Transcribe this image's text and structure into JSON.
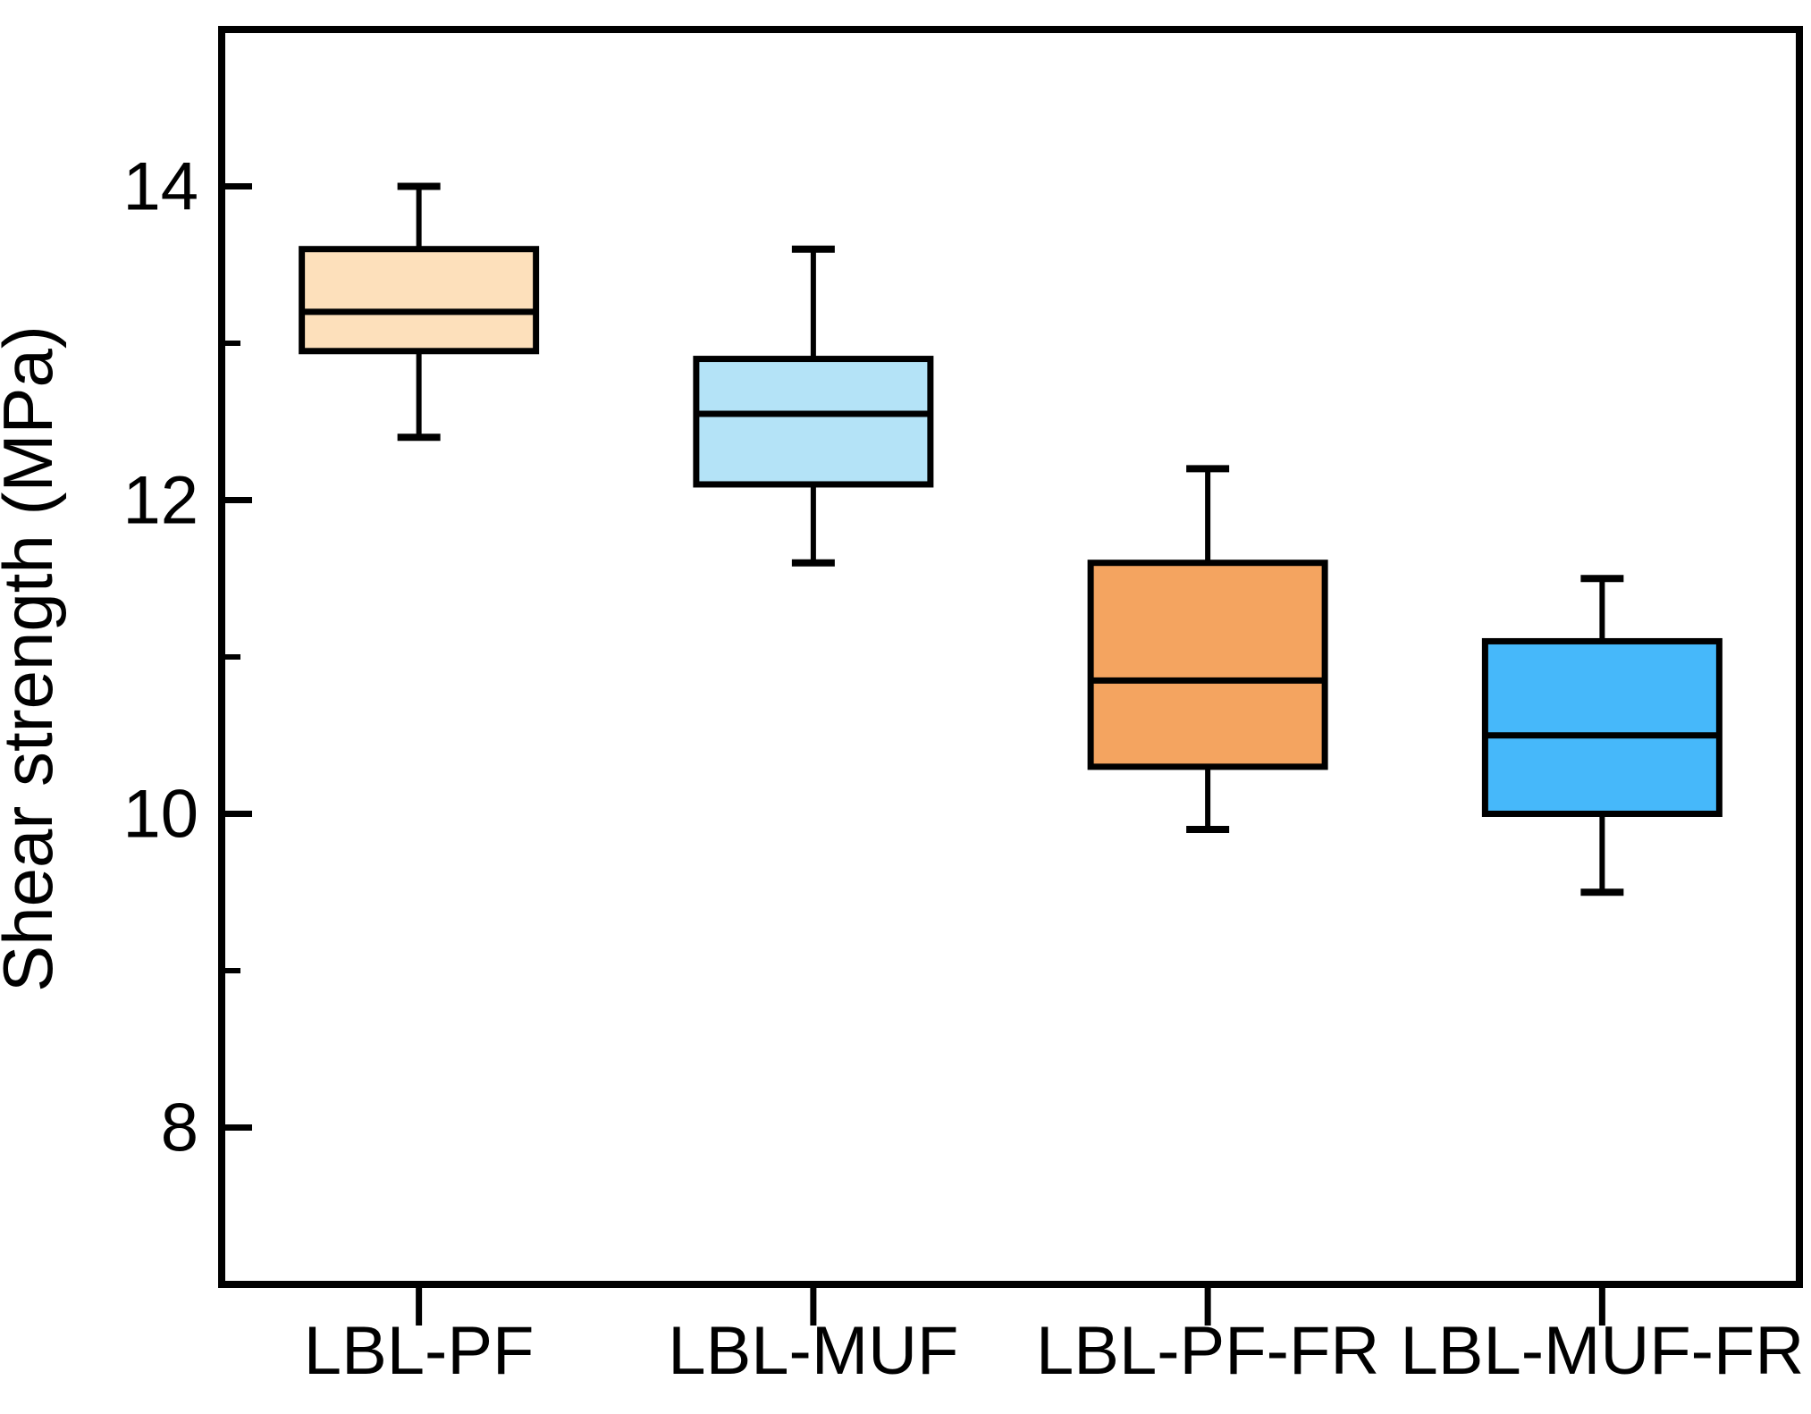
{
  "figure": {
    "background_color": "#ffffff",
    "frame_color": "#000000",
    "text_color": "#000000"
  },
  "chart_data": {
    "type": "boxplot",
    "title": "",
    "xlabel": "",
    "ylabel": "Shear strength (MPa)",
    "ylim": [
      7,
      15
    ],
    "y_major_ticks": [
      14,
      12,
      10,
      8
    ],
    "y_minor_ticks": [
      13,
      11,
      9
    ],
    "grid": false,
    "legend": false,
    "categories": [
      "LBL-PF",
      "LBL-MUF",
      "LBL-PF-FR",
      "LBL-MUF-FR"
    ],
    "series": [
      {
        "name": "LBL-PF",
        "whisker_low": 12.4,
        "q1": 12.95,
        "median": 13.2,
        "q3": 13.6,
        "whisker_high": 14.0,
        "fill_color": "#FDE0BB"
      },
      {
        "name": "LBL-MUF",
        "whisker_low": 11.6,
        "q1": 12.1,
        "median": 12.55,
        "q3": 12.9,
        "whisker_high": 13.6,
        "fill_color": "#B4E3F7"
      },
      {
        "name": "LBL-PF-FR",
        "whisker_low": 9.9,
        "q1": 10.3,
        "median": 10.85,
        "q3": 11.6,
        "whisker_high": 12.2,
        "fill_color": "#F4A460"
      },
      {
        "name": "LBL-MUF-FR",
        "whisker_low": 9.5,
        "q1": 10.0,
        "median": 10.5,
        "q3": 11.1,
        "whisker_high": 11.5,
        "fill_color": "#46B8FA"
      }
    ]
  }
}
